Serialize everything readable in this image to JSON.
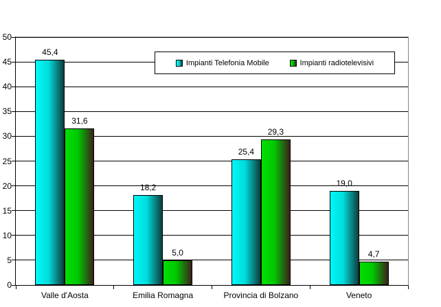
{
  "chart_data": {
    "type": "bar",
    "title": "",
    "categories": [
      "Valle d'Aosta",
      "Emilia Romagna",
      "Provincia di Bolzano",
      "Veneto"
    ],
    "series": [
      {
        "name": "Impianti Telefonia Mobile",
        "values": [
          45.4,
          18.2,
          25.4,
          19.0
        ],
        "value_labels": [
          "45,4",
          "18,2",
          "25,4",
          "19,0"
        ],
        "color_start": "#00f8f8",
        "color_mid": "#00dddd",
        "color_end": "#0e3c3c"
      },
      {
        "name": "Impianti radiotelevisivi",
        "values": [
          31.6,
          5.0,
          29.3,
          4.7
        ],
        "value_labels": [
          "31,6",
          "5,0",
          "29,3",
          "4,7"
        ],
        "color_start": "#00e000",
        "color_mid": "#00c800",
        "color_end": "#3c201c"
      }
    ],
    "ylim": [
      0,
      50
    ],
    "ytick_step": 5,
    "ytick_labels": [
      "0",
      "5",
      "10",
      "15",
      "20",
      "25",
      "30",
      "35",
      "40",
      "45",
      "50"
    ],
    "grid": true,
    "gridline_color": "#000000",
    "plot_border_color": "#848484",
    "decimal_separator": ",",
    "legend_position": "top-inside"
  }
}
